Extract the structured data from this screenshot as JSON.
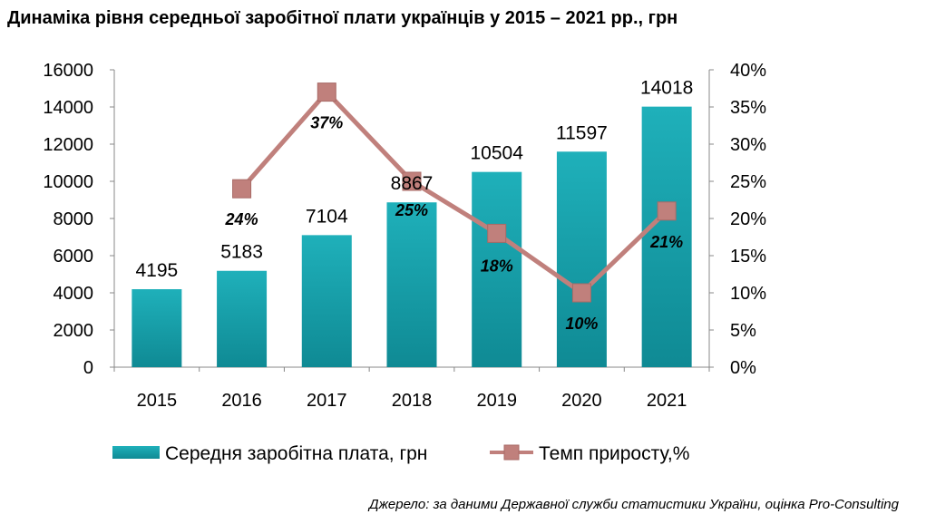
{
  "title": "Динаміка рівня середньої заробітної плати українців у 2015 – 2021 рр., грн",
  "source": "Джерело: за даними Державної служби статистики України, оцінка Pro-Consulting",
  "chart_data": {
    "type": "bar",
    "categories": [
      "2015",
      "2016",
      "2017",
      "2018",
      "2019",
      "2020",
      "2021"
    ],
    "series": [
      {
        "name": "Середня заробітна плата, грн",
        "type": "bar",
        "axis": "left",
        "color": "#1fa6b0",
        "values": [
          4195,
          5183,
          7104,
          8867,
          10504,
          11597,
          14018
        ],
        "labels": [
          "4195",
          "5183",
          "7104",
          "8867",
          "10504",
          "11597",
          "14018"
        ]
      },
      {
        "name": "Темп приросту,%",
        "type": "line",
        "axis": "right",
        "color": "#c0807c",
        "values": [
          null,
          24,
          37,
          25,
          18,
          10,
          21
        ],
        "labels": [
          "",
          "24%",
          "37%",
          "25%",
          "18%",
          "10%",
          "21%"
        ]
      }
    ],
    "ylim": [
      0,
      16000
    ],
    "y_ticks": [
      "0",
      "2000",
      "4000",
      "6000",
      "8000",
      "10000",
      "12000",
      "14000",
      "16000"
    ],
    "y2lim": [
      0,
      40
    ],
    "y2_ticks": [
      "0%",
      "5%",
      "10%",
      "15%",
      "20%",
      "25%",
      "30%",
      "35%",
      "40%"
    ],
    "legend_position": "bottom",
    "grid": false
  }
}
